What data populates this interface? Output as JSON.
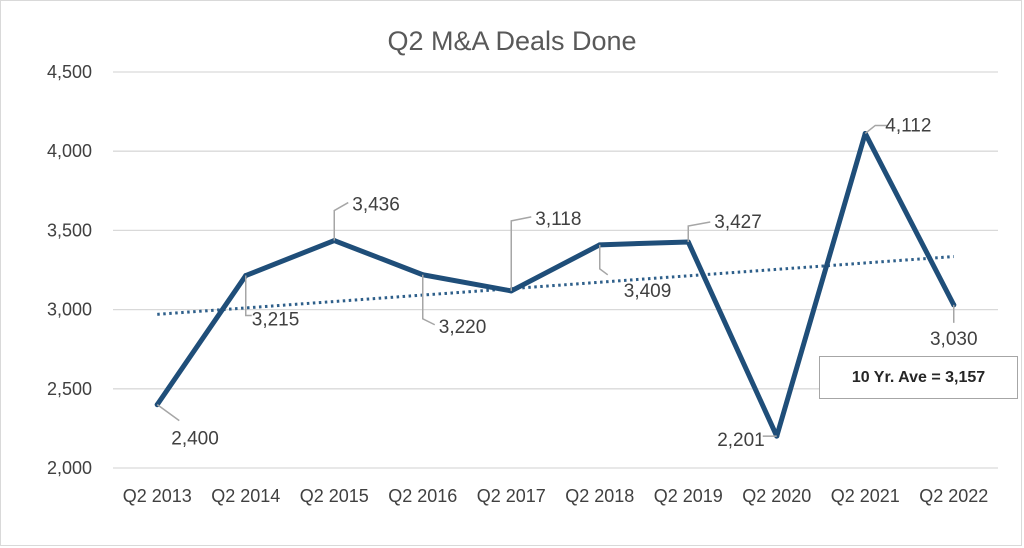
{
  "chart_data": {
    "type": "line",
    "title": "Q2 M&A Deals Done",
    "xlabel": "",
    "ylabel": "",
    "categories": [
      "Q2 2013",
      "Q2 2014",
      "Q2 2015",
      "Q2 2016",
      "Q2 2017",
      "Q2 2018",
      "Q2 2019",
      "Q2 2020",
      "Q2 2021",
      "Q2 2022"
    ],
    "series": [
      {
        "values": [
          2400,
          3215,
          3436,
          3220,
          3118,
          3409,
          3427,
          2201,
          4112,
          3030
        ],
        "data_labels": [
          "2,400",
          "3,215",
          "3,436",
          "3,220",
          "3,118",
          "3,409",
          "3,427",
          "2,201",
          "4,112",
          "3,030"
        ],
        "color": "#1f4e79"
      }
    ],
    "trendline": {
      "style": "dotted",
      "color": "#2e5f8a",
      "start": 2970,
      "end": 3335
    },
    "y_ticks": [
      2000,
      2500,
      3000,
      3500,
      4000,
      4500
    ],
    "y_tick_labels": [
      "2,000",
      "2,500",
      "3,000",
      "3,500",
      "4,000",
      "4,500"
    ],
    "ylim": [
      2000,
      4500
    ],
    "grid": true,
    "annotation": "10 Yr. Ave = 3,157"
  }
}
